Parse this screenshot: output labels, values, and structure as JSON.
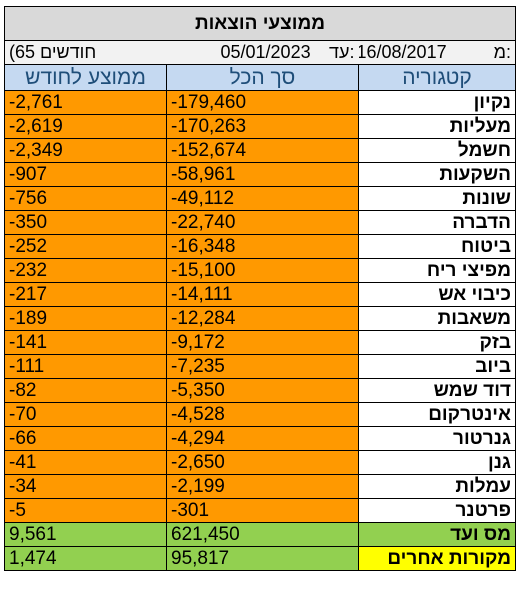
{
  "title": "ממוצעי הוצאות",
  "meta": {
    "months": "(חודשים 65",
    "to_date": "05/01/2023",
    "to_label": "עד:",
    "from_date": "16/08/2017",
    "from_label": "מ:"
  },
  "headers": {
    "avg": "ממוצע לחודש",
    "total": "סך הכל",
    "category": "קטגוריה"
  },
  "rows": [
    {
      "avg": "-2,761",
      "total": "-179,460",
      "category": "נקיון"
    },
    {
      "avg": "-2,619",
      "total": "-170,263",
      "category": "מעליות"
    },
    {
      "avg": "-2,349",
      "total": "-152,674",
      "category": "חשמל"
    },
    {
      "avg": "-907",
      "total": "-58,961",
      "category": "השקעות"
    },
    {
      "avg": "-756",
      "total": "-49,112",
      "category": "שונות"
    },
    {
      "avg": "-350",
      "total": "-22,740",
      "category": "הדברה"
    },
    {
      "avg": "-252",
      "total": "-16,348",
      "category": "ביטוח"
    },
    {
      "avg": "-232",
      "total": "-15,100",
      "category": "מפיצי ריח"
    },
    {
      "avg": "-217",
      "total": "-14,111",
      "category": "כיבוי אש"
    },
    {
      "avg": "-189",
      "total": "-12,284",
      "category": "משאבות"
    },
    {
      "avg": "-141",
      "total": "-9,172",
      "category": "בזק"
    },
    {
      "avg": "-111",
      "total": "-7,235",
      "category": "ביוב"
    },
    {
      "avg": "-82",
      "total": "-5,350",
      "category": "דוד שמש"
    },
    {
      "avg": "-70",
      "total": "-4,528",
      "category": "אינטרקום"
    },
    {
      "avg": "-66",
      "total": "-4,294",
      "category": "גנרטור"
    },
    {
      "avg": "-41",
      "total": "-2,650",
      "category": "גנן"
    },
    {
      "avg": "-34",
      "total": "-2,199",
      "category": "עמלות"
    },
    {
      "avg": "-5",
      "total": "-301",
      "category": "פרטנר"
    }
  ],
  "income": [
    {
      "avg": "9,561",
      "total": "621,450",
      "category": "מס ועד"
    },
    {
      "avg": "1,474",
      "total": "95,817",
      "category": "מקורות אחרים"
    }
  ],
  "colors": {
    "expense_fill": "#ff9900",
    "income_fill": "#92d050",
    "other_sources_fill": "#ffff00",
    "header_fill": "#c5d9f1",
    "header_text": "#1f4e79",
    "title_fill": "#d9d9d9"
  }
}
